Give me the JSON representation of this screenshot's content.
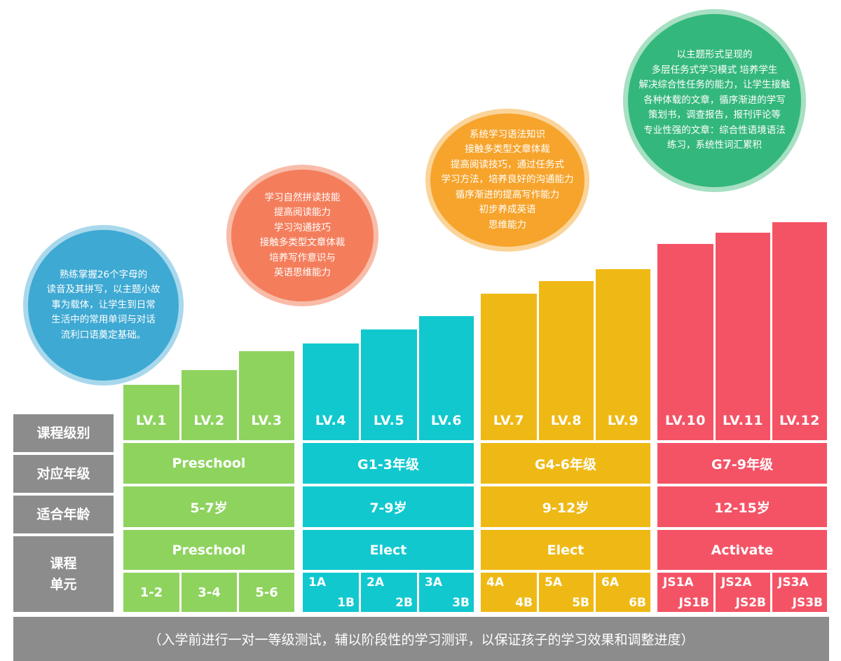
{
  "headers": {
    "level": "课程级别",
    "grade": "对应年级",
    "age": "适合年龄",
    "unit": "课程\n单元"
  },
  "circles": {
    "blue": "熟练掌握26个字母的\n读音及其拼写，以主题小故\n事为载体，让学生到日常\n生活中的常用单词与对话\n流利口语奠定基础。",
    "orange": "学习自然拼读技能\n提高阅读能力\n学习沟通技巧\n接触多类型文章体裁\n培养写作意识与\n英语思维能力",
    "yellow": "系统学习语法知识\n接触多类型文章体裁\n提高阅读技巧，通过任务式\n学习方法，培养良好的沟通能力\n循序渐进的提高写作能力\n初步养成英语\n思维能力",
    "green": "以主题形式呈现的\n多层任务式学习模式 培养学生\n解决综合性任务的能力，让学生接触\n各种体载的文章，循序渐进的学写\n策划书，调查报告，报刊评论等\n专业性强的文章：综合性语境语法\n练习，系统性词汇累积"
  },
  "levels": [
    "LV.1",
    "LV.2",
    "LV.3",
    "LV.4",
    "LV.5",
    "LV.6",
    "LV.7",
    "LV.8",
    "LV.9",
    "LV.10",
    "LV.11",
    "LV.12"
  ],
  "groups": [
    {
      "color": "#8ed35e",
      "grade": "Preschool",
      "age": "5-7岁",
      "course": "Preschool",
      "units": [
        {
          "single": "1-2"
        },
        {
          "single": "3-4"
        },
        {
          "single": "5-6"
        }
      ]
    },
    {
      "color": "#11c8cf",
      "grade": "G1-3年级",
      "age": "7-9岁",
      "course": "Elect",
      "units": [
        {
          "a": "1A",
          "b": "1B"
        },
        {
          "a": "2A",
          "b": "2B"
        },
        {
          "a": "3A",
          "b": "3B"
        }
      ]
    },
    {
      "color": "#efb915",
      "grade": "G4-6年级",
      "age": "9-12岁",
      "course": "Elect",
      "units": [
        {
          "a": "4A",
          "b": "4B"
        },
        {
          "a": "5A",
          "b": "5B"
        },
        {
          "a": "6A",
          "b": "6B"
        }
      ]
    },
    {
      "color": "#f45366",
      "grade": "G7-9年级",
      "age": "12-15岁",
      "course": "Activate",
      "units": [
        {
          "a": "JS1A",
          "b": "JS1B"
        },
        {
          "a": "JS2A",
          "b": "JS2B"
        },
        {
          "a": "JS3A",
          "b": "JS3B"
        }
      ]
    }
  ],
  "footer": "（入学前进行一对一等级测试，辅以阶段性的学习测评，以保证孩子的学习效果和调整进度）"
}
